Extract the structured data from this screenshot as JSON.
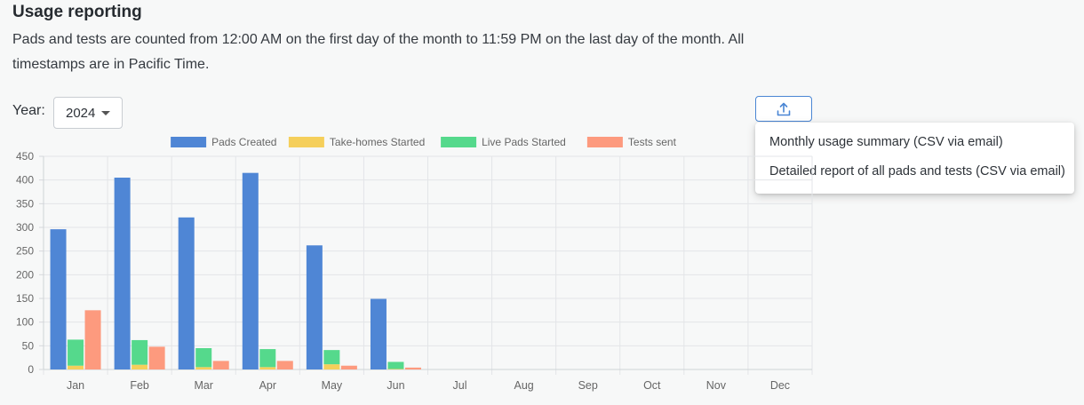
{
  "header": {
    "title": "Usage reporting",
    "description": "Pads and tests are counted from 12:00 AM on the first day of the month to 11:59 PM on the last day of the month. All timestamps are in Pacific Time."
  },
  "controls": {
    "year_label": "Year:",
    "year_value": "2024",
    "export_icon": "upload-icon"
  },
  "export_menu": {
    "items": [
      "Monthly usage summary (CSV via email)",
      "Detailed report of all pads and tests (CSV via email)"
    ]
  },
  "chart_data": {
    "type": "bar",
    "stacked_groups": [
      [
        "Take-homes Started",
        "Live Pads Started"
      ]
    ],
    "categories": [
      "Jan",
      "Feb",
      "Mar",
      "Apr",
      "May",
      "Jun",
      "Jul",
      "Aug",
      "Sep",
      "Oct",
      "Nov",
      "Dec"
    ],
    "ylim": [
      0,
      450
    ],
    "yticks": [
      0,
      50,
      100,
      150,
      200,
      250,
      300,
      350,
      400,
      450
    ],
    "grid": true,
    "legend": "top-center",
    "series": [
      {
        "name": "Pads Created",
        "color": "#4f86d5",
        "values": [
          296,
          405,
          321,
          415,
          262,
          149,
          0,
          0,
          0,
          0,
          0,
          0
        ]
      },
      {
        "name": "Take-homes Started",
        "color": "#f5cf5b",
        "values": [
          8,
          10,
          5,
          5,
          11,
          1,
          0,
          0,
          0,
          0,
          0,
          0
        ]
      },
      {
        "name": "Live Pads Started",
        "color": "#55d98c",
        "values": [
          55,
          52,
          40,
          38,
          30,
          15,
          0,
          0,
          0,
          0,
          0,
          0
        ]
      },
      {
        "name": "Tests sent",
        "color": "#fd9a7e",
        "values": [
          125,
          48,
          18,
          18,
          8,
          4,
          0,
          0,
          0,
          0,
          0,
          0
        ]
      }
    ]
  }
}
